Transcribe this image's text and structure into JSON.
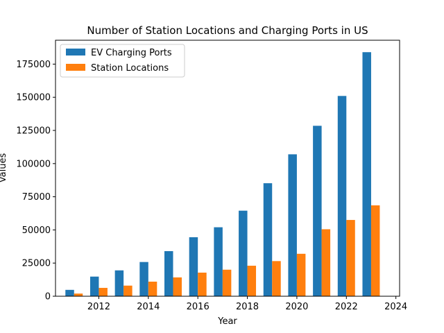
{
  "chart_data": {
    "type": "bar",
    "title": "Number of Station Locations and Charging Ports in US",
    "xlabel": "Year",
    "ylabel": "Values",
    "x": [
      2011,
      2012,
      2013,
      2014,
      2015,
      2016,
      2017,
      2018,
      2019,
      2020,
      2021,
      2022,
      2023
    ],
    "series": [
      {
        "name": "EV Charging Ports",
        "color": "#1f77b4",
        "values": [
          4800,
          14800,
          19500,
          25800,
          34000,
          44500,
          52000,
          64500,
          85200,
          107000,
          128500,
          151000,
          184000
        ]
      },
      {
        "name": "Station Locations",
        "color": "#ff7f0e",
        "values": [
          2000,
          6300,
          8000,
          11000,
          14200,
          17800,
          20000,
          23000,
          26500,
          32000,
          50500,
          57500,
          68500
        ]
      }
    ],
    "xlim": [
      2010.25,
      2024.15
    ],
    "ylim": [
      0,
      193000
    ],
    "xticks": [
      2012,
      2014,
      2016,
      2018,
      2020,
      2022,
      2024
    ],
    "yticks": [
      0,
      25000,
      50000,
      75000,
      100000,
      125000,
      150000,
      175000
    ],
    "grid": false,
    "legend": "top-left"
  }
}
